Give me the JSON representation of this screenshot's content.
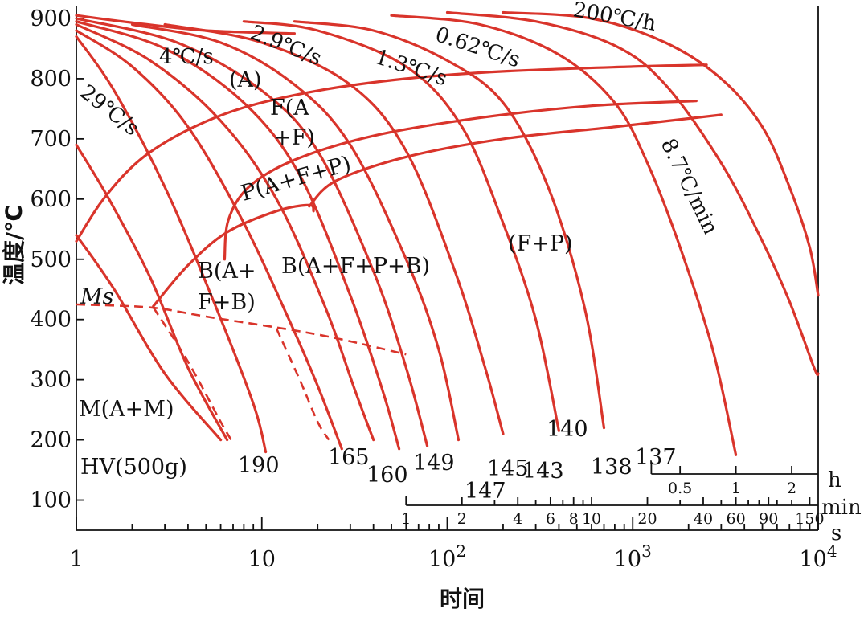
{
  "chart_data": {
    "type": "line",
    "title": "",
    "xlabel": "时间",
    "ylabel": "温度/℃",
    "x_scale": "log",
    "xlim": [
      1,
      10000
    ],
    "ylim": [
      50,
      920
    ],
    "y_ticks": [
      "100",
      "200",
      "300",
      "400",
      "500",
      "600",
      "700",
      "800",
      "900"
    ],
    "x_ticks": [
      {
        "base": "1",
        "exp": ""
      },
      {
        "base": "10",
        "exp": ""
      },
      {
        "base": "10",
        "exp": "2"
      },
      {
        "base": "10",
        "exp": "3"
      },
      {
        "base": "10",
        "exp": "4"
      }
    ],
    "hour_scale": {
      "unit": "h",
      "ticks": [
        "0.5",
        "1",
        "2"
      ]
    },
    "minute_scale": {
      "unit": "min",
      "ticks": [
        "1",
        "2",
        "4",
        "6",
        "8",
        "10",
        "20",
        "40",
        "60",
        "90",
        "150"
      ]
    },
    "second_unit": "s",
    "ms_label": "Ms",
    "cooling_rate_labels": [
      "29℃/s",
      "4℃/s",
      "2.9℃/s",
      "1.3℃/s",
      "0.62℃/s",
      "200℃/h",
      "8.7℃/min"
    ],
    "regions": [
      {
        "text": "(A)"
      },
      {
        "text": "F(A",
        "text2": "+F)"
      },
      {
        "text": "P(A+F+P)"
      },
      {
        "text": "B(A+",
        "text2": "F+B)"
      },
      {
        "text": "B(A+F+P+B)"
      },
      {
        "text": "(F+P)"
      },
      {
        "text": "M(A+M)"
      },
      {
        "text": "HV(500g)"
      }
    ],
    "hardness_values": [
      "190",
      "165",
      "160",
      "149",
      "147",
      "145",
      "143",
      "140",
      "138",
      "137"
    ],
    "transformation_lines": {
      "austenite_ferrite_start": [
        [
          1.0,
          530
        ],
        [
          1.4,
          600
        ],
        [
          2.2,
          665
        ],
        [
          4,
          715
        ],
        [
          8,
          752
        ],
        [
          20,
          780
        ],
        [
          60,
          800
        ],
        [
          200,
          812
        ],
        [
          1000,
          820
        ],
        [
          2500,
          823
        ]
      ],
      "ferrite_pearlite_start": [
        [
          6.3,
          500
        ],
        [
          6.6,
          565
        ],
        [
          8.5,
          620
        ],
        [
          15,
          665
        ],
        [
          40,
          705
        ],
        [
          150,
          735
        ],
        [
          600,
          755
        ],
        [
          2200,
          763
        ]
      ],
      "pearlite_finish": [
        [
          18,
          588
        ],
        [
          25,
          630
        ],
        [
          60,
          670
        ],
        [
          200,
          700
        ],
        [
          800,
          720
        ],
        [
          3000,
          740
        ]
      ],
      "bainite_start": [
        [
          2.6,
          422
        ],
        [
          4,
          490
        ],
        [
          6.5,
          545
        ],
        [
          12,
          580
        ],
        [
          18,
          590
        ],
        [
          19,
          580
        ]
      ],
      "ms_line": [
        [
          1,
          425
        ],
        [
          2.5,
          420
        ],
        [
          5,
          405
        ],
        [
          20,
          375
        ],
        [
          60,
          342
        ]
      ],
      "pearlite_start_upper": [
        [
          1,
          905
        ],
        [
          2,
          893
        ],
        [
          5,
          880
        ],
        [
          15,
          875
        ]
      ]
    },
    "cooling_curves": [
      {
        "label": "29℃/s",
        "points": [
          [
            1,
            690
          ],
          [
            1.5,
            600
          ],
          [
            2.5,
            470
          ],
          [
            4,
            320
          ],
          [
            6.5,
            200
          ]
        ]
      },
      {
        "label": "",
        "points": [
          [
            1,
            540
          ],
          [
            1.6,
            450
          ],
          [
            3,
            310
          ],
          [
            6,
            200
          ]
        ]
      },
      {
        "label": "",
        "points": [
          [
            1,
            870
          ],
          [
            1.6,
            780
          ],
          [
            3,
            620
          ],
          [
            5.5,
            430
          ],
          [
            9,
            260
          ],
          [
            10.5,
            180
          ]
        ]
      },
      {
        "label": "4℃/s",
        "points": [
          [
            1,
            880
          ],
          [
            2,
            820
          ],
          [
            4,
            720
          ],
          [
            8,
            560
          ],
          [
            14,
            400
          ],
          [
            20,
            290
          ],
          [
            27,
            185
          ]
        ]
      },
      {
        "label": "2.9℃/s",
        "points": [
          [
            1,
            890
          ],
          [
            2.5,
            830
          ],
          [
            6,
            730
          ],
          [
            12,
            600
          ],
          [
            22,
            420
          ],
          [
            32,
            280
          ],
          [
            40,
            200
          ]
        ]
      },
      {
        "label": "",
        "points": [
          [
            1,
            895
          ],
          [
            3,
            850
          ],
          [
            8,
            760
          ],
          [
            16,
            640
          ],
          [
            30,
            440
          ],
          [
            45,
            280
          ],
          [
            55,
            185
          ]
        ]
      },
      {
        "label": "",
        "points": [
          [
            1,
            900
          ],
          [
            3.5,
            860
          ],
          [
            10,
            780
          ],
          [
            20,
            680
          ],
          [
            40,
            480
          ],
          [
            60,
            320
          ],
          [
            78,
            190
          ]
        ]
      },
      {
        "label": "1.3℃/s",
        "points": [
          [
            2,
            890
          ],
          [
            6,
            860
          ],
          [
            15,
            790
          ],
          [
            30,
            690
          ],
          [
            60,
            500
          ],
          [
            90,
            350
          ],
          [
            115,
            200
          ]
        ]
      },
      {
        "label": "",
        "points": [
          [
            3,
            890
          ],
          [
            10,
            860
          ],
          [
            30,
            790
          ],
          [
            60,
            680
          ],
          [
            110,
            480
          ],
          [
            160,
            320
          ],
          [
            200,
            210
          ]
        ]
      },
      {
        "label": "0.62℃/s",
        "points": [
          [
            8,
            895
          ],
          [
            20,
            880
          ],
          [
            60,
            820
          ],
          [
            120,
            720
          ],
          [
            200,
            560
          ],
          [
            300,
            400
          ],
          [
            400,
            215
          ]
        ]
      },
      {
        "label": "",
        "points": [
          [
            15,
            895
          ],
          [
            40,
            880
          ],
          [
            100,
            830
          ],
          [
            200,
            760
          ],
          [
            350,
            620
          ],
          [
            550,
            420
          ],
          [
            700,
            220
          ]
        ]
      },
      {
        "label": "200℃/h",
        "points": [
          [
            50,
            905
          ],
          [
            150,
            890
          ],
          [
            400,
            840
          ],
          [
            800,
            760
          ],
          [
            1200,
            660
          ],
          [
            1800,
            520
          ],
          [
            2700,
            350
          ],
          [
            3600,
            175
          ]
        ]
      },
      {
        "label": "8.7℃/min",
        "points": [
          [
            100,
            910
          ],
          [
            300,
            895
          ],
          [
            800,
            855
          ],
          [
            1500,
            790
          ],
          [
            3000,
            660
          ],
          [
            5000,
            530
          ],
          [
            7000,
            430
          ],
          [
            9500,
            320
          ],
          [
            10000,
            310
          ]
        ]
      },
      {
        "label": "",
        "points": [
          [
            200,
            910
          ],
          [
            600,
            900
          ],
          [
            1500,
            860
          ],
          [
            3000,
            800
          ],
          [
            5000,
            720
          ],
          [
            7000,
            620
          ],
          [
            9000,
            520
          ],
          [
            10000,
            440
          ]
        ]
      }
    ]
  }
}
